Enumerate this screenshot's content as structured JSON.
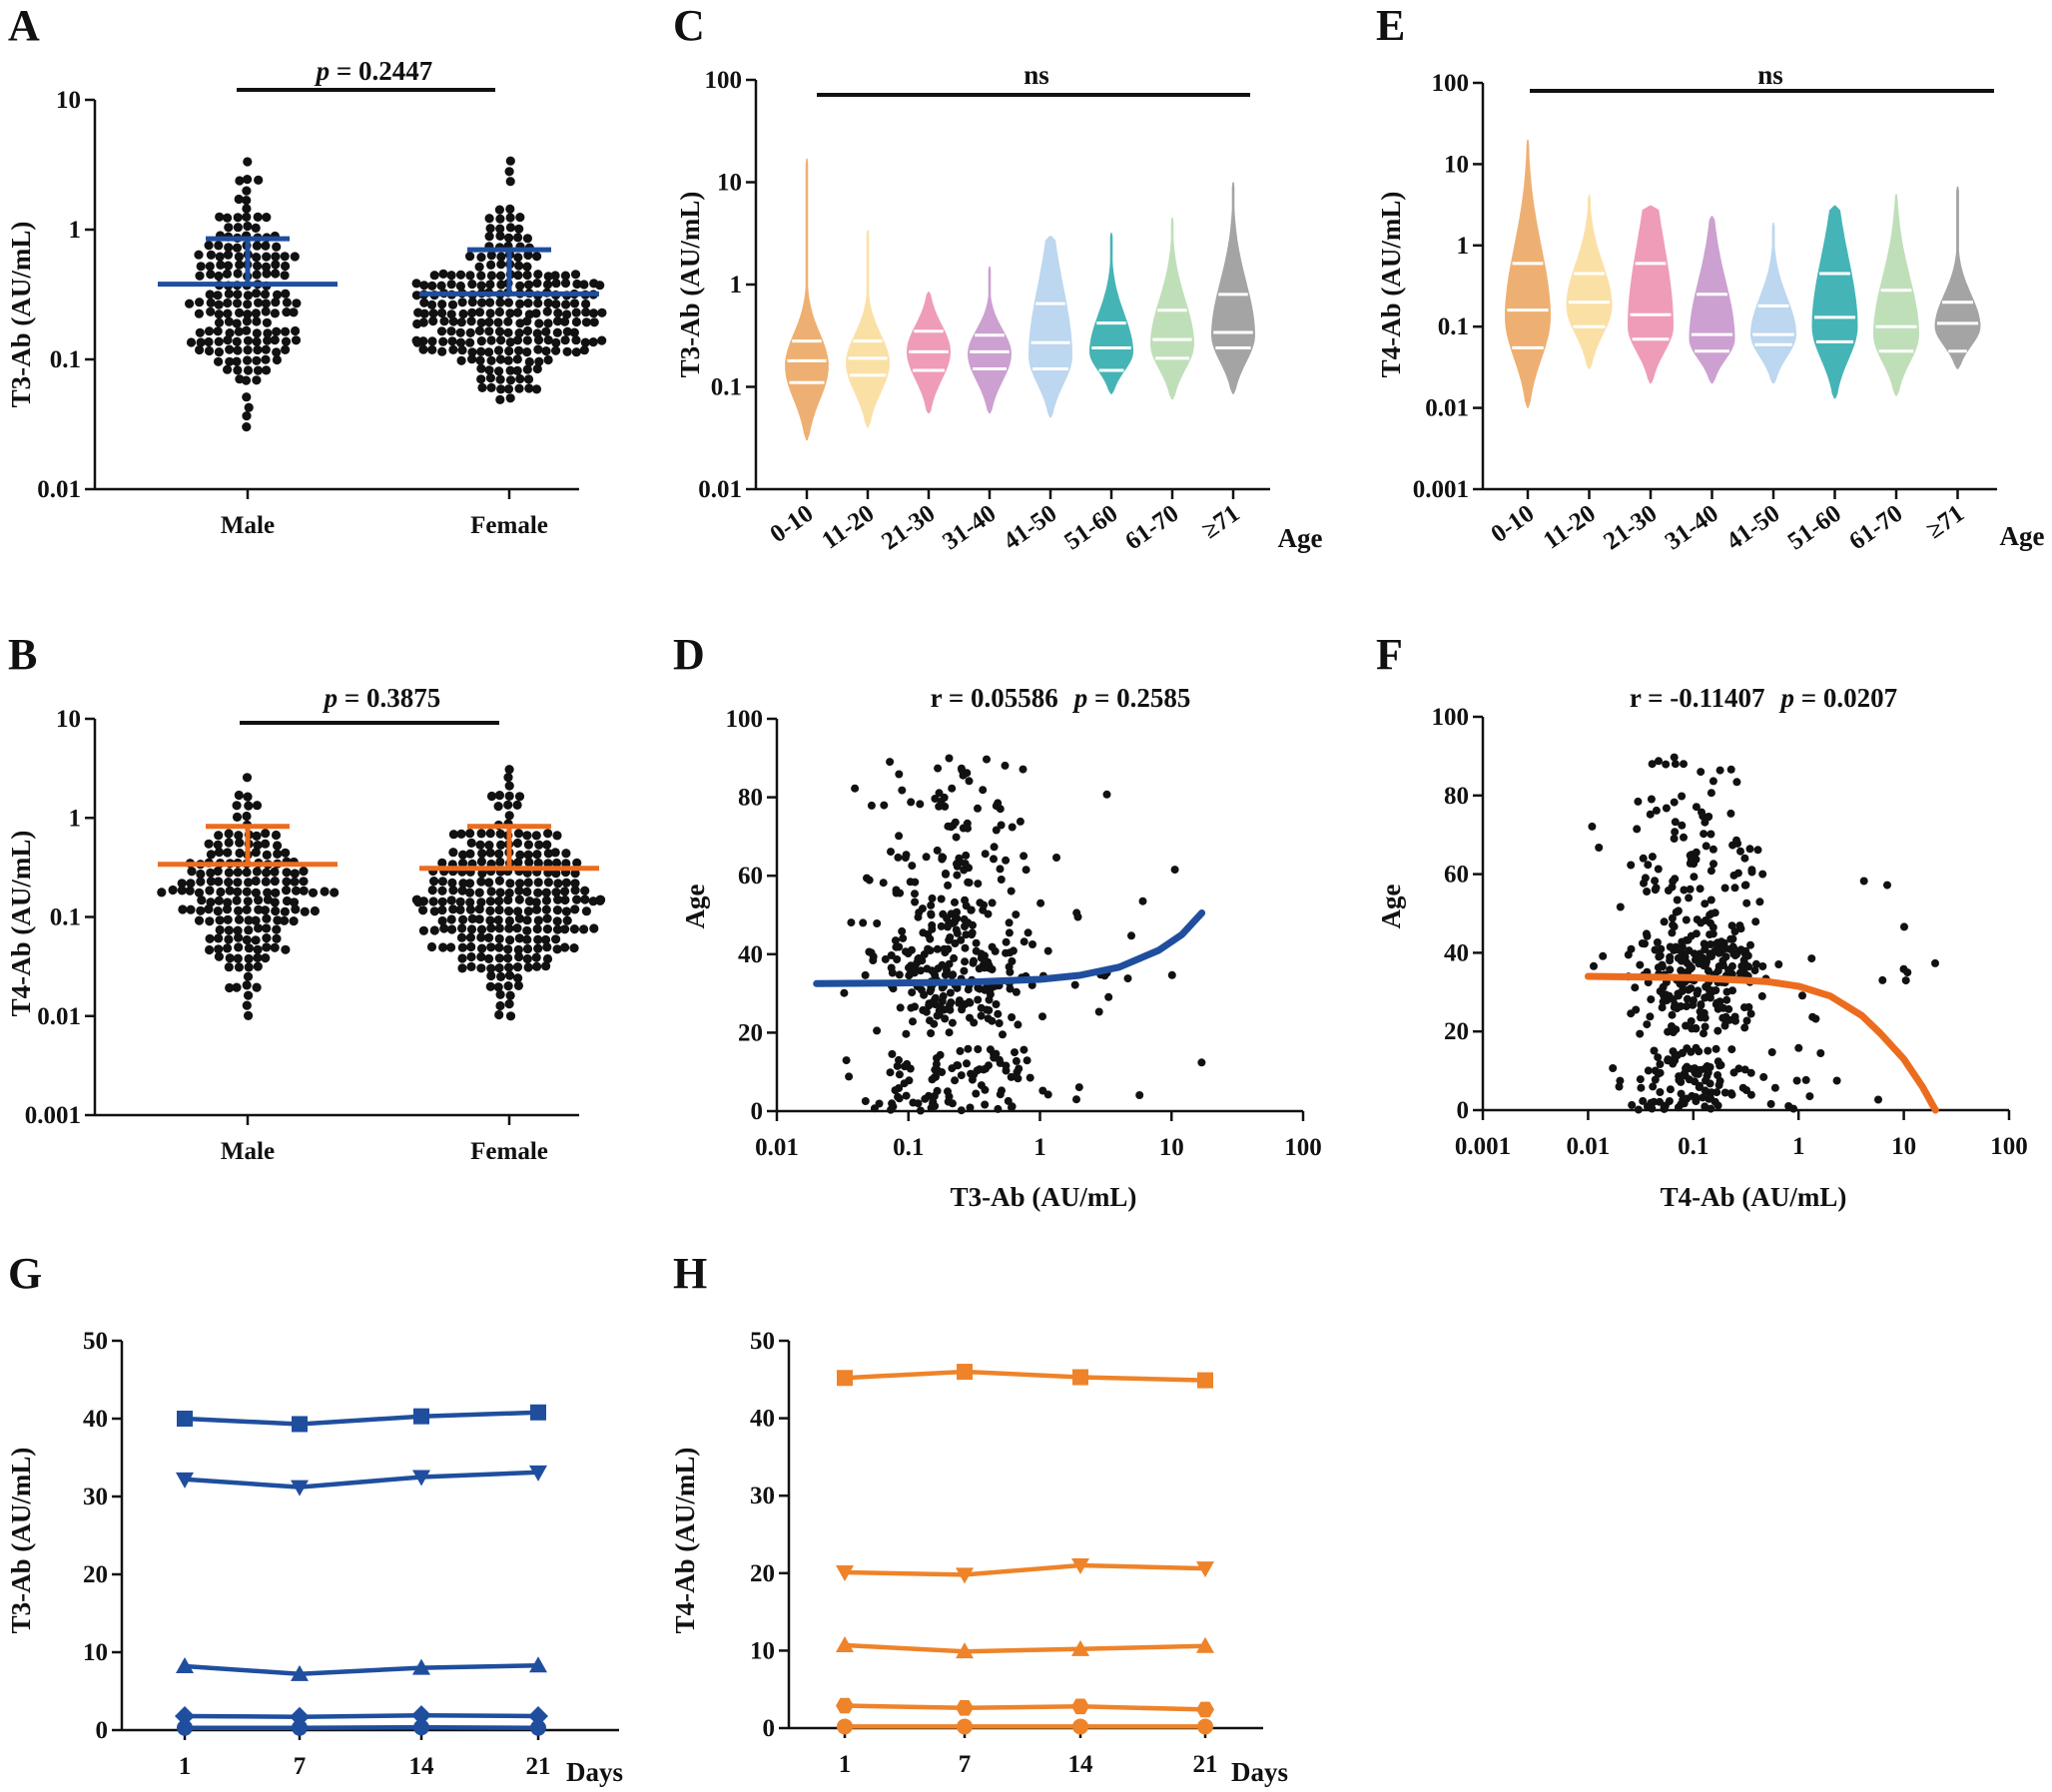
{
  "figure": {
    "panel_letters": [
      "A",
      "B",
      "C",
      "D",
      "E",
      "F",
      "G",
      "H"
    ],
    "colors": {
      "blue": "#1f4e9e",
      "orange": "#ec6c1f",
      "line_orange": "#ee8329",
      "points": "#111111",
      "violin_palette": [
        "#eeb072",
        "#fbe0a6",
        "#ef9cb9",
        "#cca0d0",
        "#bcd7ef",
        "#45b4b6",
        "#bfdfb9",
        "#a4a4a4"
      ],
      "violin_lines": "#ffffff"
    }
  },
  "chart_data": [
    {
      "panel": "A",
      "type": "scatter",
      "subtype": "dot-plot",
      "ylabel": "T3-Ab (AU/mL)",
      "yscale": "log",
      "ylim": [
        0.01,
        10
      ],
      "yticks": [
        "0.01",
        "0.1",
        "1",
        "10"
      ],
      "categories": [
        "Male",
        "Female"
      ],
      "summary": [
        {
          "category": "Male",
          "mean": 0.38,
          "upper": 0.85
        },
        {
          "category": "Female",
          "mean": 0.32,
          "upper": 0.7
        }
      ],
      "dots": [
        {
          "category": "Male",
          "n": 160,
          "min": 0.03,
          "max": 3.3,
          "median": 0.3
        },
        {
          "category": "Female",
          "n": 240,
          "min": 0.05,
          "max": 3.1,
          "median": 0.22
        }
      ],
      "annotation": {
        "prefix": "p",
        "text": " = 0.2447"
      }
    },
    {
      "panel": "B",
      "type": "scatter",
      "subtype": "dot-plot",
      "ylabel": "T4-Ab (AU/mL)",
      "yscale": "log",
      "ylim": [
        0.001,
        10
      ],
      "yticks": [
        "0.001",
        "0.01",
        "0.1",
        "1",
        "10"
      ],
      "categories": [
        "Male",
        "Female"
      ],
      "summary": [
        {
          "category": "Male",
          "mean": 0.34,
          "upper": 0.82
        },
        {
          "category": "Female",
          "mean": 0.31,
          "upper": 0.82
        }
      ],
      "dots": [
        {
          "category": "Male",
          "n": 170,
          "min": 0.01,
          "max": 2.6,
          "median": 0.15
        },
        {
          "category": "Female",
          "n": 250,
          "min": 0.01,
          "max": 3.1,
          "median": 0.13
        }
      ],
      "annotation": {
        "prefix": "p",
        "text": " = 0.3875"
      }
    },
    {
      "panel": "C",
      "type": "violin",
      "ylabel": "T3-Ab (AU/mL)",
      "xlabel": "Age",
      "yscale": "log",
      "ylim": [
        0.01,
        100
      ],
      "yticks": [
        "0.01",
        "0.1",
        "1",
        "10",
        "100"
      ],
      "categories": [
        "0-10",
        "11-20",
        "21-30",
        "31-40",
        "41-50",
        "51-60",
        "61-70",
        "≥71"
      ],
      "min": [
        0.03,
        0.04,
        0.055,
        0.055,
        0.05,
        0.085,
        0.075,
        0.085
      ],
      "q1": [
        0.11,
        0.13,
        0.145,
        0.15,
        0.15,
        0.145,
        0.19,
        0.24
      ],
      "median": [
        0.18,
        0.19,
        0.22,
        0.22,
        0.27,
        0.24,
        0.29,
        0.34
      ],
      "q3": [
        0.28,
        0.28,
        0.35,
        0.32,
        0.65,
        0.42,
        0.56,
        0.8
      ],
      "max": [
        17,
        3.4,
        0.85,
        1.5,
        3,
        3.2,
        4.5,
        10
      ],
      "density_peak": [
        0.16,
        0.17,
        0.22,
        0.21,
        0.2,
        0.22,
        0.26,
        0.32
      ],
      "annotation": {
        "text": "ns"
      }
    },
    {
      "panel": "D",
      "type": "scatter",
      "xlabel": "T3-Ab (AU/mL)",
      "ylabel": "Age",
      "xscale": "log",
      "xlim": [
        0.01,
        100
      ],
      "ylim": [
        0,
        100
      ],
      "xticks": [
        "0.01",
        "0.1",
        "1",
        "10",
        "100"
      ],
      "yticks": [
        "0",
        "20",
        "40",
        "60",
        "80",
        "100"
      ],
      "points": {
        "n": 430,
        "x_range": [
          0.03,
          17
        ],
        "y_range": [
          0,
          90
        ],
        "x_center": 0.22
      },
      "fit": {
        "x": [
          0.02,
          0.05,
          0.1,
          0.3,
          1,
          2,
          4,
          8,
          12,
          17
        ],
        "y": [
          32.5,
          32.6,
          32.7,
          32.9,
          33.6,
          34.6,
          36.7,
          41,
          45,
          50.5
        ]
      },
      "annotation": {
        "r_label": "r = 0.05586",
        "prefix": "p",
        "text": " = 0.2585"
      }
    },
    {
      "panel": "E",
      "type": "violin",
      "ylabel": "T4-Ab (AU/mL)",
      "xlabel": "Age",
      "yscale": "log",
      "ylim": [
        0.001,
        100
      ],
      "yticks": [
        "0.001",
        "0.01",
        "0.1",
        "1",
        "10",
        "100"
      ],
      "categories": [
        "0-10",
        "11-20",
        "21-30",
        "31-40",
        "41-50",
        "51-60",
        "61-70",
        "≥71"
      ],
      "min": [
        0.01,
        0.03,
        0.02,
        0.02,
        0.02,
        0.013,
        0.014,
        0.03
      ],
      "q1": [
        0.055,
        0.1,
        0.07,
        0.05,
        0.06,
        0.065,
        0.05,
        0.05
      ],
      "median": [
        0.16,
        0.2,
        0.14,
        0.08,
        0.08,
        0.13,
        0.1,
        0.11
      ],
      "q3": [
        0.6,
        0.45,
        0.6,
        0.25,
        0.18,
        0.45,
        0.28,
        0.2
      ],
      "max": [
        20,
        4.2,
        3.1,
        2.3,
        1.9,
        3.1,
        4.3,
        5.3
      ],
      "density_peak": [
        0.13,
        0.18,
        0.1,
        0.07,
        0.08,
        0.1,
        0.08,
        0.1
      ],
      "annotation": {
        "text": "ns"
      }
    },
    {
      "panel": "F",
      "type": "scatter",
      "xlabel": "T4-Ab (AU/mL)",
      "ylabel": "Age",
      "xscale": "log",
      "xlim": [
        0.001,
        100
      ],
      "ylim": [
        0,
        100
      ],
      "xticks": [
        "0.001",
        "0.01",
        "0.1",
        "1",
        "10",
        "100"
      ],
      "yticks": [
        "0",
        "20",
        "40",
        "60",
        "80",
        "100"
      ],
      "points": {
        "n": 460,
        "x_range": [
          0.01,
          20
        ],
        "y_range": [
          0,
          90
        ],
        "x_center": 0.1
      },
      "fit": {
        "x": [
          0.01,
          0.1,
          0.5,
          1,
          2,
          4,
          6,
          10,
          15,
          20
        ],
        "y": [
          34,
          33.7,
          32.7,
          31.5,
          29,
          24,
          19.5,
          13,
          6,
          0
        ]
      },
      "annotation": {
        "r_label": "r = -0.11407",
        "prefix": "p",
        "text": " = 0.0207"
      }
    },
    {
      "panel": "G",
      "type": "line",
      "ylabel": "T3-Ab (AU/mL)",
      "xlabel": "Days",
      "ylim": [
        0,
        50
      ],
      "yticks": [
        "0",
        "10",
        "20",
        "30",
        "40",
        "50"
      ],
      "categories": [
        "1",
        "7",
        "14",
        "21"
      ],
      "series": [
        {
          "marker": "square",
          "values": [
            40,
            39.3,
            40.3,
            40.8
          ]
        },
        {
          "marker": "triangle-down",
          "values": [
            32.2,
            31.2,
            32.5,
            33.1
          ]
        },
        {
          "marker": "triangle-up",
          "values": [
            8.2,
            7.2,
            8.0,
            8.3
          ]
        },
        {
          "marker": "diamond",
          "values": [
            1.8,
            1.7,
            1.9,
            1.8
          ]
        },
        {
          "marker": "circle",
          "values": [
            0.3,
            0.3,
            0.35,
            0.3
          ]
        }
      ]
    },
    {
      "panel": "H",
      "type": "line",
      "ylabel": "T4-Ab (AU/mL)",
      "xlabel": "Days",
      "ylim": [
        0,
        50
      ],
      "yticks": [
        "0",
        "10",
        "20",
        "30",
        "40",
        "50"
      ],
      "categories": [
        "1",
        "7",
        "14",
        "21"
      ],
      "series": [
        {
          "marker": "square",
          "values": [
            45.2,
            46,
            45.3,
            44.9
          ]
        },
        {
          "marker": "triangle-down",
          "values": [
            20.1,
            19.8,
            21.0,
            20.6
          ]
        },
        {
          "marker": "triangle-up",
          "values": [
            10.7,
            9.9,
            10.2,
            10.6
          ]
        },
        {
          "marker": "hexagon",
          "values": [
            2.9,
            2.6,
            2.8,
            2.4
          ]
        },
        {
          "marker": "circle",
          "values": [
            0.2,
            0.2,
            0.2,
            0.2
          ]
        }
      ]
    }
  ]
}
